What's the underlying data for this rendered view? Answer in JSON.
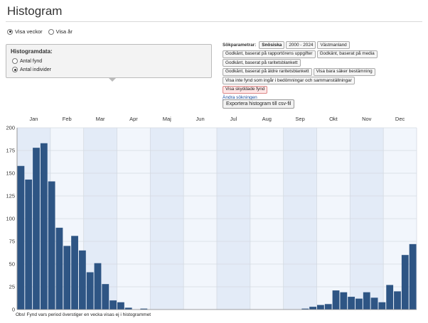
{
  "page": {
    "title": "Histogram"
  },
  "view_options": {
    "options": [
      {
        "label": "Visa veckor",
        "checked": true
      },
      {
        "label": "Visa år",
        "checked": false
      }
    ]
  },
  "histogram_data": {
    "title": "Histogramdata:",
    "options": [
      {
        "label": "Antal fynd",
        "checked": false
      },
      {
        "label": "Antal individer",
        "checked": true
      }
    ]
  },
  "search_params": {
    "label": "Sökparametrar:",
    "lines": [
      [
        {
          "text": "Snösiska",
          "style": "bold"
        },
        {
          "text": "2000 - 2024",
          "style": ""
        },
        {
          "text": "Västmanland",
          "style": ""
        }
      ],
      [
        {
          "text": "Godkänt, baserat på rapportörens uppgifter",
          "style": ""
        },
        {
          "text": "Godkänt, baserat på media",
          "style": ""
        }
      ],
      [
        {
          "text": "Godkänt, baserat på raritetsblankett",
          "style": ""
        }
      ],
      [
        {
          "text": "Godkänt, baserat på äldre raritetsblankett",
          "style": ""
        },
        {
          "text": "Visa bara säker bestämning",
          "style": ""
        }
      ],
      [
        {
          "text": "Visa inte fynd som ingår i bedömningar och sammanställningar",
          "style": ""
        }
      ],
      [
        {
          "text": "Visa skyddade fynd",
          "style": "red"
        }
      ]
    ],
    "change_link": "Ändra sökningen"
  },
  "export_button": "Exportera histogram till csv-fil",
  "footnote": "Obs! Fynd vars period överstiger en vecka visas ej i histogrammet",
  "colors": {
    "bar": "#2e5584",
    "band_light": "#f2f6fc",
    "band_dark": "#e3ebf7",
    "grid": "#d4dae2"
  },
  "chart_data": {
    "type": "bar",
    "title": "",
    "xlabel": "",
    "ylabel": "",
    "months": [
      "Jan",
      "Feb",
      "Mar",
      "Apr",
      "Maj",
      "Jun",
      "Jul",
      "Aug",
      "Sep",
      "Okt",
      "Nov",
      "Dec"
    ],
    "ylim": [
      0,
      200
    ],
    "yticks": [
      0,
      25,
      50,
      75,
      100,
      125,
      150,
      175,
      200
    ],
    "grid": true,
    "weeks": [
      1,
      2,
      3,
      4,
      5,
      6,
      7,
      8,
      9,
      10,
      11,
      12,
      13,
      14,
      15,
      16,
      17,
      18,
      19,
      20,
      21,
      22,
      23,
      24,
      25,
      26,
      27,
      28,
      29,
      30,
      31,
      32,
      33,
      34,
      35,
      36,
      37,
      38,
      39,
      40,
      41,
      42,
      43,
      44,
      45,
      46,
      47,
      48,
      49,
      50,
      51,
      52
    ],
    "values": [
      158,
      143,
      178,
      183,
      141,
      90,
      70,
      81,
      65,
      41,
      51,
      28,
      10,
      8,
      2,
      0,
      1,
      0,
      0,
      0,
      0,
      0,
      0,
      0,
      0,
      0,
      0,
      0,
      0,
      0,
      0,
      0,
      0,
      0,
      0,
      0,
      0,
      1,
      3,
      5,
      6,
      21,
      19,
      14,
      12,
      19,
      13,
      8,
      27,
      20,
      60,
      72
    ]
  }
}
